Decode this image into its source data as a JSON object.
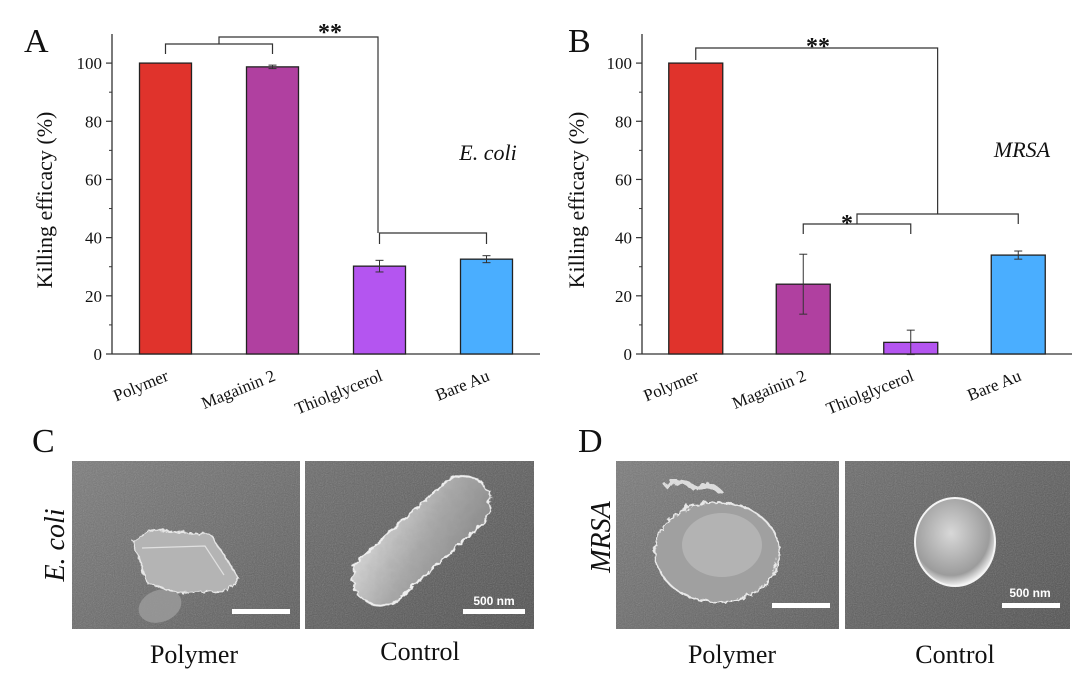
{
  "panels": {
    "a": "A",
    "b": "B",
    "c": "C",
    "d": "D"
  },
  "chart_data": [
    {
      "type": "bar",
      "panel": "A",
      "organism": "E. coli",
      "ylabel": "Killing efficacy (%)",
      "ylim": [
        0,
        110
      ],
      "yticks": [
        0,
        20,
        40,
        60,
        80,
        100
      ],
      "categories": [
        "Polymer",
        "Magainin 2",
        "Thiolglycerol",
        "Bare Au"
      ],
      "values": [
        100,
        98.7,
        30.2,
        32.6
      ],
      "errors": [
        0,
        0.6,
        2.0,
        1.2
      ],
      "colors": [
        "#e0332c",
        "#b040a0",
        "#b455f0",
        "#4aaeff"
      ],
      "significance": [
        {
          "label": "**",
          "left": [
            0,
            1
          ],
          "right": [
            2,
            3
          ]
        }
      ]
    },
    {
      "type": "bar",
      "panel": "B",
      "organism": "MRSA",
      "ylabel": "Killing efficacy (%)",
      "ylim": [
        0,
        110
      ],
      "yticks": [
        0,
        20,
        40,
        60,
        80,
        100
      ],
      "categories": [
        "Polymer",
        "Magainin 2",
        "Thiolglycerol",
        "Bare Au"
      ],
      "values": [
        100,
        24,
        4,
        34
      ],
      "errors": [
        0,
        10.3,
        4.2,
        1.4
      ],
      "colors": [
        "#e0332c",
        "#b040a0",
        "#b455f0",
        "#4aaeff"
      ],
      "significance": [
        {
          "label": "*",
          "left": [
            1
          ],
          "right": [
            2
          ]
        },
        {
          "label": "**",
          "left": [
            0
          ],
          "right": [
            1,
            2,
            3
          ]
        }
      ]
    }
  ],
  "sem": {
    "c": {
      "side_label": "E. coli",
      "left_caption": "Polymer",
      "right_caption": "Control",
      "scale_label": "500 nm"
    },
    "d": {
      "side_label": "MRSA",
      "left_caption": "Polymer",
      "right_caption": "Control",
      "scale_label": "500 nm"
    }
  }
}
